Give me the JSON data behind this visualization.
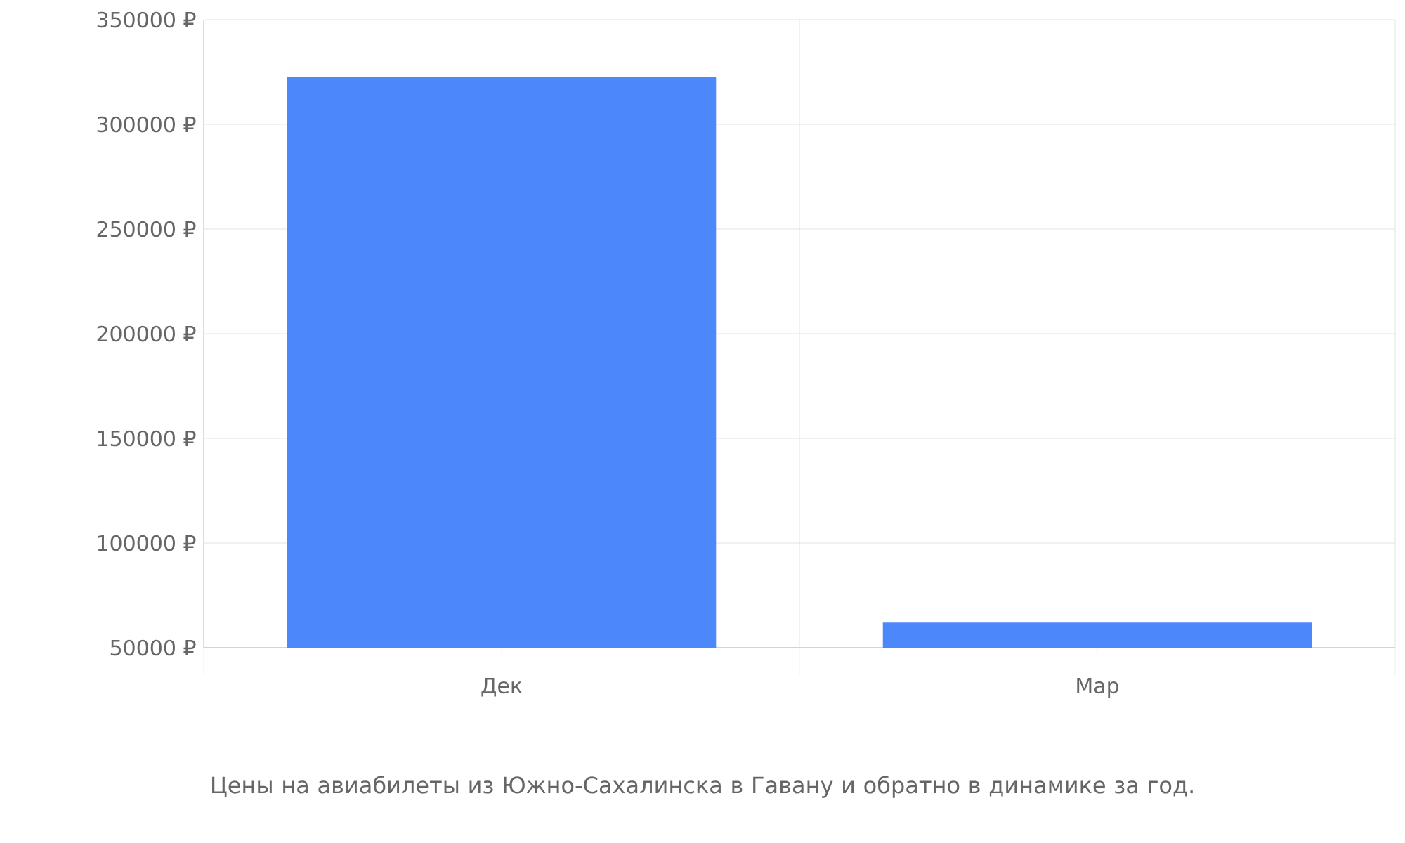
{
  "chart_data": {
    "type": "bar",
    "categories": [
      "Дек",
      "Мар"
    ],
    "values": [
      322500,
      62000
    ],
    "color": "#4d88fb",
    "ylim": [
      50000,
      350000
    ],
    "yticks": [
      {
        "value": 50000,
        "label": "50000 ₽"
      },
      {
        "value": 100000,
        "label": "100000 ₽"
      },
      {
        "value": 150000,
        "label": "150000 ₽"
      },
      {
        "value": 200000,
        "label": "200000 ₽"
      },
      {
        "value": 250000,
        "label": "250000 ₽"
      },
      {
        "value": 300000,
        "label": "300000 ₽"
      },
      {
        "value": 350000,
        "label": "350000 ₽"
      }
    ],
    "grid": true,
    "annotations": [
      "Цены на авиабилеты из Южно-Сахалинска в Гавану и обратно в динамике за год."
    ]
  }
}
